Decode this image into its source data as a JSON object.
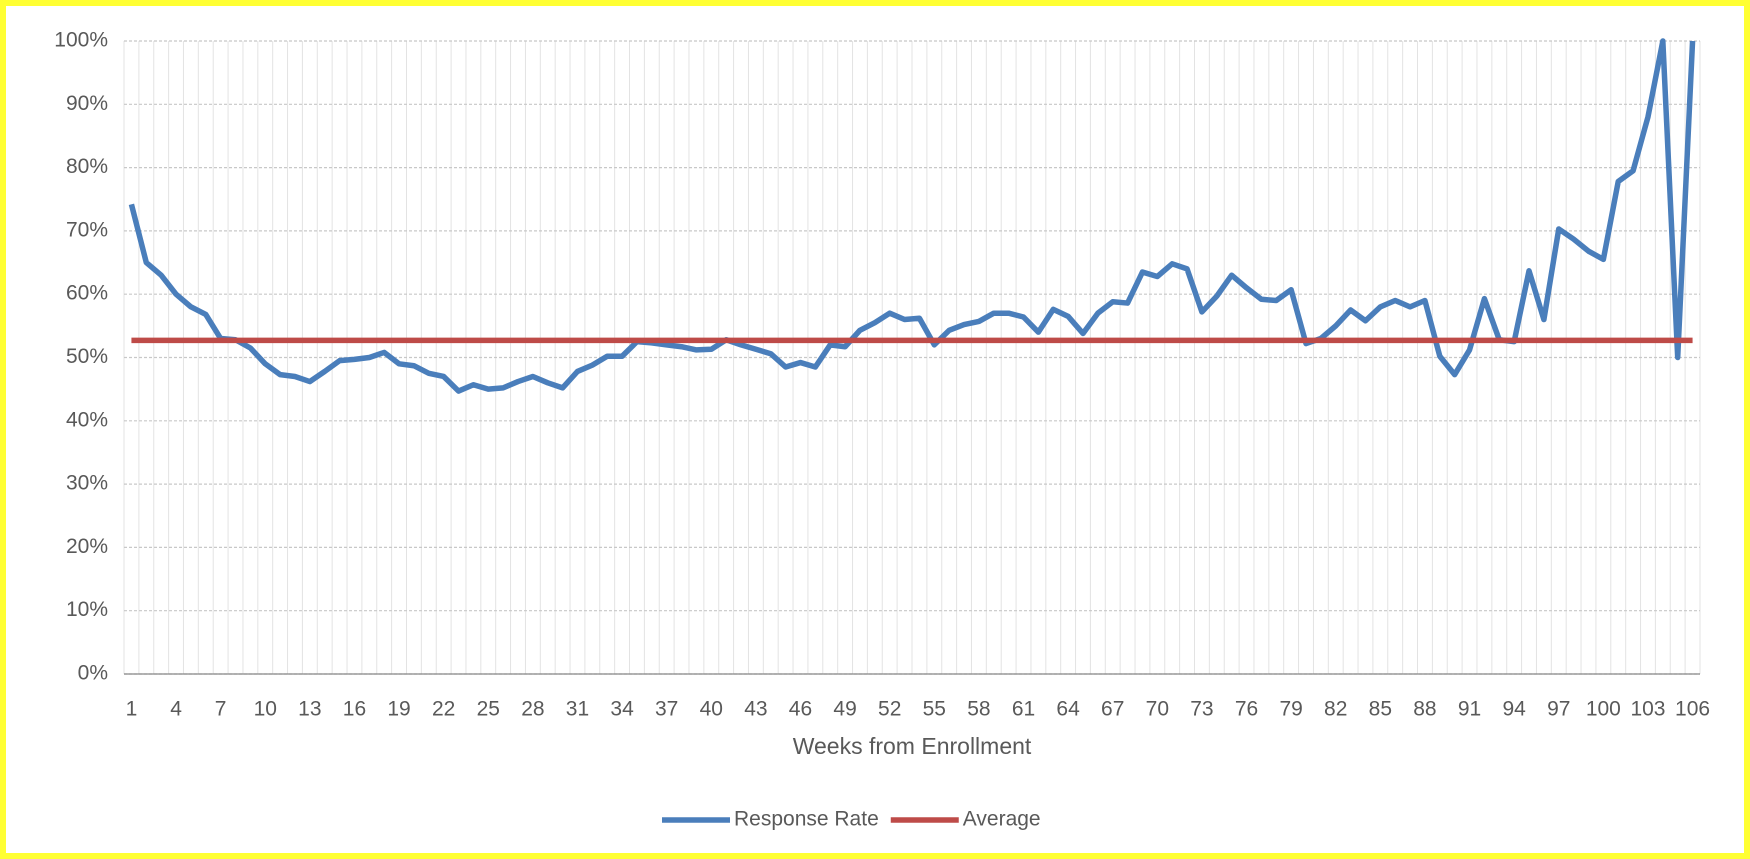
{
  "chart_data": {
    "type": "line",
    "x_label": "Weeks from Enrollment",
    "categories": [
      1,
      null,
      null,
      4,
      null,
      null,
      7,
      null,
      null,
      10,
      null,
      null,
      13,
      null,
      null,
      16,
      null,
      null,
      19,
      null,
      null,
      22,
      null,
      null,
      25,
      null,
      null,
      28,
      null,
      null,
      31,
      null,
      null,
      34,
      null,
      null,
      37,
      null,
      null,
      40,
      null,
      null,
      43,
      null,
      null,
      46,
      null,
      null,
      49,
      null,
      null,
      52,
      null,
      null,
      55,
      null,
      null,
      58,
      null,
      null,
      61,
      null,
      null,
      64,
      null,
      null,
      67,
      null,
      null,
      70,
      null,
      null,
      73,
      null,
      null,
      76,
      null,
      null,
      79,
      null,
      null,
      82,
      null,
      null,
      85,
      null,
      null,
      88,
      null,
      null,
      91,
      null,
      null,
      94,
      null,
      null,
      97,
      null,
      null,
      100,
      null,
      null,
      103,
      null,
      null,
      106
    ],
    "series": [
      {
        "name": "Response Rate",
        "color": "#4a7ebb",
        "values": [
          74.2,
          65,
          63,
          60,
          58,
          56.8,
          53,
          52.8,
          51.5,
          49,
          47.3,
          47,
          46.2,
          47.8,
          49.5,
          49.7,
          50,
          50.8,
          49,
          48.7,
          47.5,
          47,
          44.7,
          45.7,
          45,
          45.2,
          46.2,
          47,
          46,
          45.2,
          47.8,
          48.8,
          50.2,
          50.2,
          52.5,
          52.3,
          52,
          51.7,
          51.2,
          51.3,
          52.8,
          52,
          51.3,
          50.6,
          48.5,
          49.2,
          48.5,
          52,
          51.7,
          54.3,
          55.5,
          57,
          56,
          56.2,
          52,
          54.3,
          55.2,
          55.7,
          57,
          57,
          56.4,
          54,
          57.6,
          56.5,
          53.8,
          57,
          58.8,
          58.6,
          63.5,
          62.8,
          64.8,
          64,
          57.2,
          59.7,
          63,
          61,
          59.2,
          59,
          60.7,
          52.2,
          53,
          55,
          57.5,
          55.8,
          58,
          59,
          58,
          59,
          50.2,
          47.3,
          51.2,
          59.3,
          52.8,
          52.5,
          63.7,
          56,
          70.3,
          68.7,
          66.8,
          65.5,
          77.8,
          79.5,
          88,
          100,
          50,
          100
        ]
      },
      {
        "name": "Average",
        "color": "#be4b48",
        "values": [
          52.7,
          52.7,
          52.7,
          52.7,
          52.7,
          52.7,
          52.7,
          52.7,
          52.7,
          52.7,
          52.7,
          52.7,
          52.7,
          52.7,
          52.7,
          52.7,
          52.7,
          52.7,
          52.7,
          52.7,
          52.7,
          52.7,
          52.7,
          52.7,
          52.7,
          52.7,
          52.7,
          52.7,
          52.7,
          52.7,
          52.7,
          52.7,
          52.7,
          52.7,
          52.7,
          52.7,
          52.7,
          52.7,
          52.7,
          52.7,
          52.7,
          52.7,
          52.7,
          52.7,
          52.7,
          52.7,
          52.7,
          52.7,
          52.7,
          52.7,
          52.7,
          52.7,
          52.7,
          52.7,
          52.7,
          52.7,
          52.7,
          52.7,
          52.7,
          52.7,
          52.7,
          52.7,
          52.7,
          52.7,
          52.7,
          52.7,
          52.7,
          52.7,
          52.7,
          52.7,
          52.7,
          52.7,
          52.7,
          52.7,
          52.7,
          52.7,
          52.7,
          52.7,
          52.7,
          52.7,
          52.7,
          52.7,
          52.7,
          52.7,
          52.7,
          52.7,
          52.7,
          52.7,
          52.7,
          52.7,
          52.7,
          52.7,
          52.7,
          52.7,
          52.7,
          52.7,
          52.7,
          52.7,
          52.7,
          52.7,
          52.7,
          52.7,
          52.7,
          52.7,
          52.7,
          52.7
        ]
      }
    ],
    "ylim": [
      0,
      100
    ],
    "yticks": [
      {
        "value": 0,
        "label": "0%"
      },
      {
        "value": 10,
        "label": "10%"
      },
      {
        "value": 20,
        "label": "20%"
      },
      {
        "value": 30,
        "label": "30%"
      },
      {
        "value": 40,
        "label": "40%"
      },
      {
        "value": 50,
        "label": "50%"
      },
      {
        "value": 60,
        "label": "60%"
      },
      {
        "value": 70,
        "label": "70%"
      },
      {
        "value": 80,
        "label": "80%"
      },
      {
        "value": 90,
        "label": "90%"
      },
      {
        "value": 100,
        "label": "100%"
      }
    ],
    "grid": true,
    "legend": "bottom"
  }
}
